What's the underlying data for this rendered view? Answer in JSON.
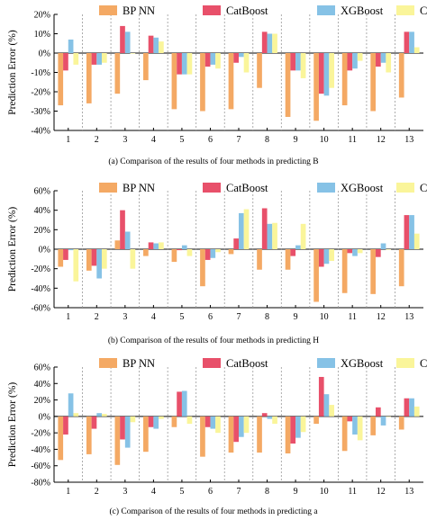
{
  "figure": {
    "series_names": [
      "BP NN",
      "CatBoost",
      "XGBoost",
      "CNN"
    ],
    "colors": [
      "#F4A964",
      "#E8506A",
      "#86C2E6",
      "#FAF59A"
    ]
  },
  "chart_data": [
    {
      "type": "bar",
      "caption": "(a)  Comparison of the results of four methods in predicting B",
      "ylabel": "Prediction Error (%)",
      "ylim": [
        -40,
        20
      ],
      "yticks": [
        -40,
        -30,
        -20,
        -10,
        0,
        10,
        20
      ],
      "ytick_labels": [
        "-40%",
        "-30%",
        "-20%",
        "-10%",
        "0%",
        "10%",
        "20%"
      ],
      "categories": [
        "1",
        "2",
        "3",
        "4",
        "5",
        "6",
        "7",
        "8",
        "9",
        "10",
        "11",
        "12",
        "13"
      ],
      "legend": "top",
      "grid": false,
      "series": [
        {
          "name": "BP NN",
          "values": [
            -27,
            -26,
            -21,
            -14,
            -29,
            -30,
            -29,
            -18,
            -33,
            -35,
            -27,
            -30,
            -23
          ]
        },
        {
          "name": "CatBoost",
          "values": [
            -9,
            -6,
            14,
            9,
            -11,
            -7,
            -5,
            11,
            -9,
            -21,
            -9,
            -7,
            11
          ]
        },
        {
          "name": "XGBoost",
          "values": [
            7,
            -6,
            11,
            8,
            -11,
            -6,
            -2,
            10,
            -9,
            -22,
            -8,
            -5,
            11
          ]
        },
        {
          "name": "CNN",
          "values": [
            -6,
            -5,
            0,
            6,
            -11,
            -8,
            -10,
            10,
            -13,
            -18,
            -4,
            -10,
            3
          ]
        }
      ]
    },
    {
      "type": "bar",
      "caption": "(b)  Comparison of the results of four methods in predicting H",
      "ylabel": "Prediction Error (%)",
      "ylim": [
        -60,
        60
      ],
      "yticks": [
        -60,
        -40,
        -20,
        0,
        20,
        40,
        60
      ],
      "ytick_labels": [
        "-60%",
        "-40%",
        "-20%",
        "0%",
        "20%",
        "40%",
        "60%"
      ],
      "categories": [
        "1",
        "2",
        "3",
        "4",
        "5",
        "6",
        "7",
        "8",
        "9",
        "10",
        "11",
        "12",
        "13"
      ],
      "legend": "top",
      "grid": false,
      "series": [
        {
          "name": "BP NN",
          "values": [
            -18,
            -22,
            9,
            -7,
            -13,
            -38,
            -5,
            -21,
            -21,
            -54,
            -45,
            -46,
            -38
          ]
        },
        {
          "name": "CatBoost",
          "values": [
            -11,
            -17,
            40,
            7,
            -1,
            -11,
            11,
            42,
            -7,
            -18,
            -4,
            -8,
            35
          ]
        },
        {
          "name": "XGBoost",
          "values": [
            -1,
            -30,
            18,
            6,
            4,
            -9,
            37,
            26,
            4,
            -15,
            -7,
            6,
            35
          ]
        },
        {
          "name": "CNN",
          "values": [
            -33,
            -20,
            -20,
            7,
            -7,
            -3,
            41,
            27,
            26,
            -12,
            -4,
            0,
            16
          ]
        }
      ]
    },
    {
      "type": "bar",
      "caption": "(c)  Comparison of the results of four methods in predicting a",
      "ylabel": "Prediction Error (%)",
      "ylim": [
        -80,
        60
      ],
      "yticks": [
        -80,
        -60,
        -40,
        -20,
        0,
        20,
        40,
        60
      ],
      "ytick_labels": [
        "-80%",
        "-60%",
        "-40%",
        "-20%",
        "0%",
        "20%",
        "40%",
        "60%"
      ],
      "categories": [
        "1",
        "2",
        "3",
        "4",
        "5",
        "6",
        "7",
        "8",
        "9",
        "10",
        "11",
        "12",
        "13"
      ],
      "legend": "top",
      "grid": false,
      "series": [
        {
          "name": "BP NN",
          "values": [
            -53,
            -46,
            -59,
            -43,
            -13,
            -49,
            -44,
            -44,
            -45,
            -9,
            -42,
            -23,
            -16
          ]
        },
        {
          "name": "CatBoost",
          "values": [
            -22,
            -15,
            -28,
            -13,
            30,
            -13,
            -31,
            4,
            -33,
            48,
            -6,
            11,
            22
          ]
        },
        {
          "name": "XGBoost",
          "values": [
            28,
            4,
            -38,
            -15,
            31,
            -15,
            -25,
            -3,
            -26,
            27,
            -22,
            -11,
            22
          ]
        },
        {
          "name": "CNN",
          "values": [
            4,
            3,
            -7,
            -3,
            -9,
            -20,
            -20,
            -9,
            -19,
            14,
            -29,
            0,
            12
          ]
        }
      ]
    }
  ]
}
